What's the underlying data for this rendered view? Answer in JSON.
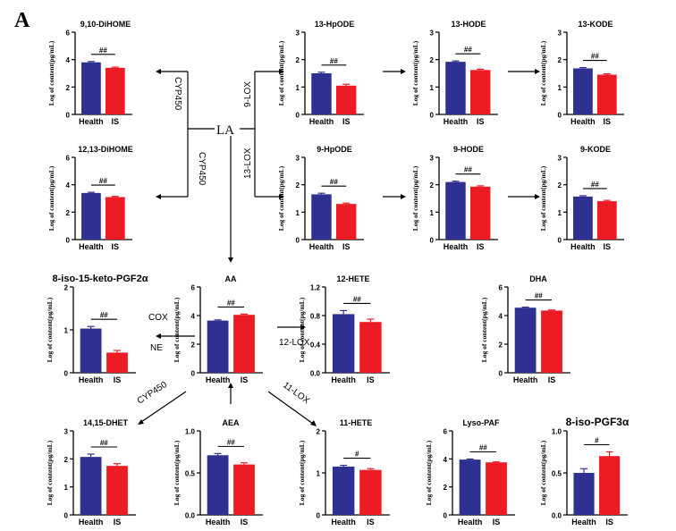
{
  "figure": {
    "panel_label": "A",
    "source_label": "LA",
    "pathway_labels": {
      "cyp450_upper": "CYP450",
      "cyp450_lower": "CYP450",
      "lox9": "9-LOX",
      "lox13": "13-LOX",
      "cox": "COX",
      "ne": "NE",
      "lox12": "12-LOX",
      "cyp450_aa": "CYP450",
      "lox11": "11-LOX"
    },
    "colors": {
      "health": "#2e3192",
      "is": "#ed1c24",
      "axis": "#000000"
    },
    "ylabel": "Log of content(pg/mL)",
    "categories": [
      "Health",
      "IS"
    ]
  },
  "chart_data": [
    {
      "type": "bar",
      "title": "9,10-DiHOME",
      "categories": [
        "Health",
        "IS"
      ],
      "values": [
        3.8,
        3.4
      ],
      "errors": [
        0.06,
        0.05
      ],
      "ylim": [
        0,
        6
      ],
      "yticks": [
        "0",
        "2",
        "4",
        "6"
      ],
      "significance": "##",
      "ylabel": "Log of content(pg/mL)"
    },
    {
      "type": "bar",
      "title": "12,13-DiHOME",
      "categories": [
        "Health",
        "IS"
      ],
      "values": [
        3.4,
        3.1
      ],
      "errors": [
        0.05,
        0.05
      ],
      "ylim": [
        0,
        6
      ],
      "yticks": [
        "0",
        "2",
        "4",
        "6"
      ],
      "significance": "##",
      "ylabel": "Log of content(pg/mL)"
    },
    {
      "type": "bar",
      "title": "13-HpODE",
      "categories": [
        "Health",
        "IS"
      ],
      "values": [
        1.5,
        1.05
      ],
      "errors": [
        0.04,
        0.05
      ],
      "ylim": [
        0,
        3
      ],
      "yticks": [
        "0",
        "1",
        "2",
        "3"
      ],
      "significance": "##",
      "ylabel": "Log of content(pg/mL)"
    },
    {
      "type": "bar",
      "title": "13-HODE",
      "categories": [
        "Health",
        "IS"
      ],
      "values": [
        1.92,
        1.62
      ],
      "errors": [
        0.03,
        0.03
      ],
      "ylim": [
        0,
        3
      ],
      "yticks": [
        "0",
        "1",
        "2",
        "3"
      ],
      "significance": "##",
      "ylabel": "Log of content(pg/mL)"
    },
    {
      "type": "bar",
      "title": "13-KODE",
      "categories": [
        "Health",
        "IS"
      ],
      "values": [
        1.68,
        1.45
      ],
      "errors": [
        0.03,
        0.03
      ],
      "ylim": [
        0,
        3
      ],
      "yticks": [
        "0",
        "1",
        "2",
        "3"
      ],
      "significance": "##",
      "ylabel": "Log of content(pg/mL)"
    },
    {
      "type": "bar",
      "title": "9-HpODE",
      "categories": [
        "Health",
        "IS"
      ],
      "values": [
        1.65,
        1.3
      ],
      "errors": [
        0.04,
        0.03
      ],
      "ylim": [
        0,
        3
      ],
      "yticks": [
        "0",
        "1",
        "2",
        "3"
      ],
      "significance": "##",
      "ylabel": "Log of content(pg/mL)"
    },
    {
      "type": "bar",
      "title": "9-HODE",
      "categories": [
        "Health",
        "IS"
      ],
      "values": [
        2.1,
        1.93
      ],
      "errors": [
        0.03,
        0.03
      ],
      "ylim": [
        0,
        3
      ],
      "yticks": [
        "0",
        "1",
        "2",
        "3"
      ],
      "significance": "##",
      "ylabel": "Log of content(pg/mL)"
    },
    {
      "type": "bar",
      "title": "9-KODE",
      "categories": [
        "Health",
        "IS"
      ],
      "values": [
        1.57,
        1.4
      ],
      "errors": [
        0.03,
        0.03
      ],
      "ylim": [
        0,
        3
      ],
      "yticks": [
        "0",
        "1",
        "2",
        "3"
      ],
      "significance": "##",
      "ylabel": "Log of content(pg/mL)"
    },
    {
      "type": "bar",
      "title": "8-iso-15-keto-PGF2α",
      "categories": [
        "Health",
        "IS"
      ],
      "values": [
        1.03,
        0.47
      ],
      "errors": [
        0.05,
        0.05
      ],
      "ylim": [
        0,
        2
      ],
      "yticks": [
        "0",
        "1",
        "2"
      ],
      "significance": "##",
      "ylabel": "Log of content(pg/mL)"
    },
    {
      "type": "bar",
      "title": "AA",
      "categories": [
        "Health",
        "IS"
      ],
      "values": [
        3.65,
        4.05
      ],
      "errors": [
        0.05,
        0.05
      ],
      "ylim": [
        0,
        6
      ],
      "yticks": [
        "0",
        "2",
        "4",
        "6"
      ],
      "significance": "##",
      "ylabel": "Log of content(pg/mL)"
    },
    {
      "type": "bar",
      "title": "12-HETE",
      "categories": [
        "Health",
        "IS"
      ],
      "values": [
        0.82,
        0.71
      ],
      "errors": [
        0.05,
        0.04
      ],
      "ylim": [
        0,
        1.2
      ],
      "yticks": [
        "0.0",
        "0.4",
        "0.8",
        "1.2"
      ],
      "significance": "##",
      "ylabel": "Log of content(pg/mL)"
    },
    {
      "type": "bar",
      "title": "DHA",
      "categories": [
        "Health",
        "IS"
      ],
      "values": [
        4.55,
        4.35
      ],
      "errors": [
        0.04,
        0.04
      ],
      "ylim": [
        0,
        6
      ],
      "yticks": [
        "0",
        "2",
        "4",
        "6"
      ],
      "significance": "##",
      "ylabel": "Log of content(pg/mL)"
    },
    {
      "type": "bar",
      "title": "14,15-DHET",
      "categories": [
        "Health",
        "IS"
      ],
      "values": [
        2.07,
        1.75
      ],
      "errors": [
        0.1,
        0.08
      ],
      "ylim": [
        0,
        3
      ],
      "yticks": [
        "0",
        "1",
        "2",
        "3"
      ],
      "significance": "##",
      "ylabel": "Log of content(pg/mL)"
    },
    {
      "type": "bar",
      "title": "AEA",
      "categories": [
        "Health",
        "IS"
      ],
      "values": [
        0.71,
        0.6
      ],
      "errors": [
        0.02,
        0.02
      ],
      "ylim": [
        0,
        1.0
      ],
      "yticks": [
        "0.0",
        "0.5",
        "1.0"
      ],
      "significance": "##",
      "ylabel": "Log of content(pg/mL)"
    },
    {
      "type": "bar",
      "title": "11-HETE",
      "categories": [
        "Health",
        "IS"
      ],
      "values": [
        1.15,
        1.07
      ],
      "errors": [
        0.03,
        0.03
      ],
      "ylim": [
        0,
        2
      ],
      "yticks": [
        "0",
        "1",
        "2"
      ],
      "significance": "#",
      "ylabel": "Log of content(pg/mL)"
    },
    {
      "type": "bar",
      "title": "Lyso-PAF",
      "categories": [
        "Health",
        "IS"
      ],
      "values": [
        3.95,
        3.75
      ],
      "errors": [
        0.04,
        0.04
      ],
      "ylim": [
        0,
        6
      ],
      "yticks": [
        "0",
        "2",
        "4",
        "6"
      ],
      "significance": "##",
      "ylabel": "Log of content(pg/mL)"
    },
    {
      "type": "bar",
      "title": "8-iso-PGF3α",
      "categories": [
        "Health",
        "IS"
      ],
      "values": [
        0.5,
        0.7
      ],
      "errors": [
        0.05,
        0.05
      ],
      "ylim": [
        0,
        1.0
      ],
      "yticks": [
        "0.0",
        "0.5",
        "1.0"
      ],
      "significance": "#",
      "ylabel": "Log of content(pg/mL)"
    }
  ]
}
